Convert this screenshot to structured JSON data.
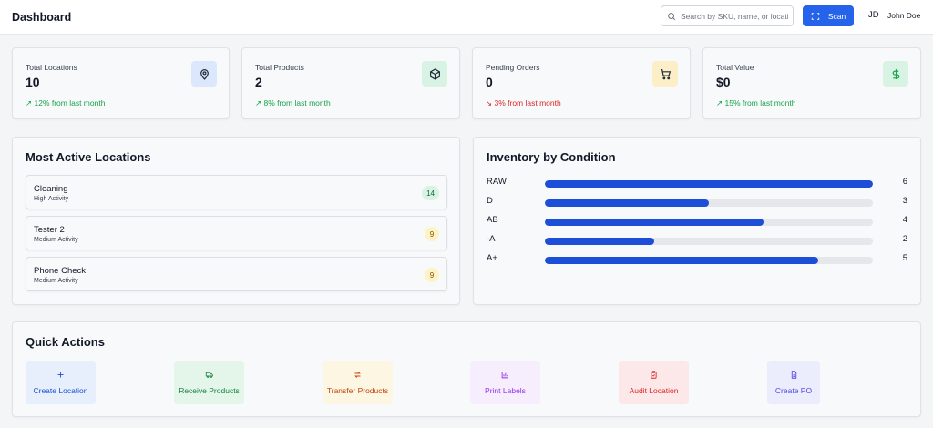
{
  "header": {
    "title": "Dashboard",
    "search_placeholder": "Search by SKU, name, or location",
    "scan_label": "Scan",
    "user_initials": "JD",
    "user_name": "John Doe"
  },
  "stats": [
    {
      "label": "Total Locations",
      "value": "10",
      "change": "↗ 12% from last month",
      "trend": "up",
      "icon": "map-pin-icon",
      "icon_bg": "#dbe7fc",
      "icon_color": "#1f2937"
    },
    {
      "label": "Total Products",
      "value": "2",
      "change": "↗ 8% from last month",
      "trend": "up",
      "icon": "box-icon",
      "icon_bg": "#d8f3e3",
      "icon_color": "#1f2937"
    },
    {
      "label": "Pending Orders",
      "value": "0",
      "change": "↘ 3% from last month",
      "trend": "down",
      "icon": "cart-icon",
      "icon_bg": "#fcefc7",
      "icon_color": "#1f2937"
    },
    {
      "label": "Total Value",
      "value": "$0",
      "change": "↗ 15% from last month",
      "trend": "up",
      "icon": "dollar-icon",
      "icon_bg": "#d8f3e3",
      "icon_color": "#16a34a"
    }
  ],
  "active_locations": {
    "title": "Most Active Locations",
    "items": [
      {
        "name": "Cleaning",
        "activity": "High Activity",
        "count": "14",
        "badge_bg": "#d8f3e3",
        "badge_color": "#166534"
      },
      {
        "name": "Tester 2",
        "activity": "Medium Activity",
        "count": "9",
        "badge_bg": "#fdf3c4",
        "badge_color": "#854d0e"
      },
      {
        "name": "Phone Check",
        "activity": "Medium Activity",
        "count": "9",
        "badge_bg": "#fdf3c4",
        "badge_color": "#854d0e"
      }
    ]
  },
  "inventory_condition": {
    "title": "Inventory by Condition",
    "max": 6,
    "rows": [
      {
        "label": "RAW",
        "value": 6,
        "count": "6"
      },
      {
        "label": "D",
        "value": 3,
        "count": "3"
      },
      {
        "label": "AB",
        "value": 4,
        "count": "4"
      },
      {
        "label": "-A",
        "value": 2,
        "count": "2"
      },
      {
        "label": "A+",
        "value": 5,
        "count": "5"
      }
    ]
  },
  "quick_actions": {
    "title": "Quick Actions",
    "items": [
      {
        "label": "Create Location",
        "icon": "plus-icon",
        "bg": "#e7effd",
        "color": "#1d4ed8"
      },
      {
        "label": "Receive Products",
        "icon": "truck-icon",
        "bg": "#e4f6ea",
        "color": "#15803d"
      },
      {
        "label": "Transfer Products",
        "icon": "transfer-icon",
        "bg": "#fdf6e3",
        "color": "#c2410c"
      },
      {
        "label": "Print Labels",
        "icon": "bar-chart-icon",
        "bg": "#f6eefd",
        "color": "#9333ea"
      },
      {
        "label": "Audit Location",
        "icon": "clipboard-icon",
        "bg": "#fce8e8",
        "color": "#dc2626"
      },
      {
        "label": "Create PO",
        "icon": "file-icon",
        "bg": "#ebecfc",
        "color": "#4f46e5"
      }
    ]
  }
}
